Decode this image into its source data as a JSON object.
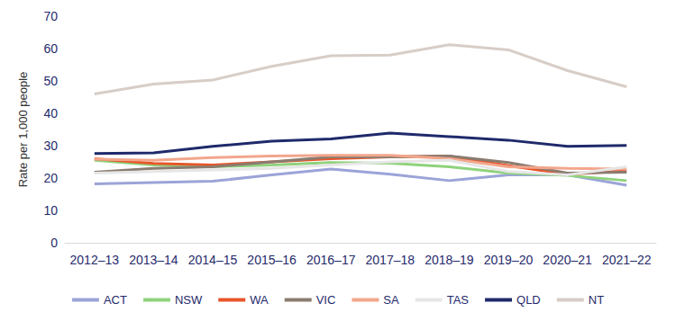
{
  "chart_data": {
    "type": "line",
    "y_label": "Rate per 1,000 people",
    "categories": [
      "2012–13",
      "2013–14",
      "2014–15",
      "2015–16",
      "2016–17",
      "2017–18",
      "2018–19",
      "2019–20",
      "2020–21",
      "2021–22"
    ],
    "series": [
      {
        "name": "ACT",
        "color": "#9ba4d8",
        "values": [
          18.2,
          18.6,
          19,
          21,
          22.8,
          21.2,
          19.2,
          21,
          21,
          17.8
        ]
      },
      {
        "name": "NSW",
        "color": "#8fd27c",
        "values": [
          25.5,
          24,
          23.5,
          24,
          24.8,
          24.6,
          23.5,
          21.5,
          20.8,
          19.2
        ]
      },
      {
        "name": "WA",
        "color": "#e8552a",
        "values": [
          26,
          24.5,
          24,
          25,
          26,
          26.5,
          26.8,
          23.8,
          21.2,
          22.2
        ]
      },
      {
        "name": "VIC",
        "color": "#8a7c70",
        "values": [
          21.8,
          23,
          23.5,
          25,
          26.5,
          26.5,
          26.8,
          24.8,
          21.5,
          21.8
        ]
      },
      {
        "name": "SA",
        "color": "#f2a68c",
        "values": [
          25.8,
          25.5,
          26.3,
          26.8,
          27,
          27,
          26,
          23.5,
          23,
          22.8
        ]
      },
      {
        "name": "TAS",
        "color": "#e6e6e6",
        "values": [
          21.5,
          22,
          22.5,
          23,
          24,
          25,
          25.5,
          22,
          21,
          23.5
        ]
      },
      {
        "name": "QLD",
        "color": "#1f2a6b",
        "values": [
          27.6,
          27.8,
          29.8,
          31.4,
          32.1,
          33.9,
          32.8,
          31.7,
          29.8,
          30.1
        ]
      },
      {
        "name": "NT",
        "color": "#d7cdc7",
        "values": [
          46,
          49,
          50.3,
          54.5,
          57.8,
          58,
          61.2,
          59.6,
          53.2,
          48.2
        ]
      }
    ],
    "ylim": [
      0,
      70
    ],
    "yticks": [
      0,
      10,
      20,
      30,
      40,
      50,
      60,
      70
    ],
    "grid": false,
    "legend": "bottom"
  }
}
